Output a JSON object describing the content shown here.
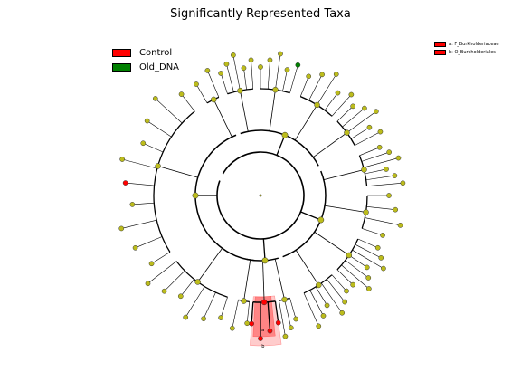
{
  "figure": {
    "title": "Significantly Represented Taxa"
  },
  "legend": {
    "items": [
      {
        "label": "Control",
        "color": "#ff0000"
      },
      {
        "label": "Old_DNA",
        "color": "#008000"
      }
    ]
  },
  "key": {
    "items": [
      {
        "label": "a: F_Burkholderiaceae",
        "color": "#ff0000"
      },
      {
        "label": "b: O_Burkholderiales",
        "color": "#ff0000"
      }
    ]
  },
  "highlights": {
    "inner_label": "a",
    "outer_label": "b",
    "color": "#ff0000"
  },
  "node_colors": {
    "default": "#bcbc1c",
    "control": "#ff0000",
    "old_dna": "#008000"
  }
}
